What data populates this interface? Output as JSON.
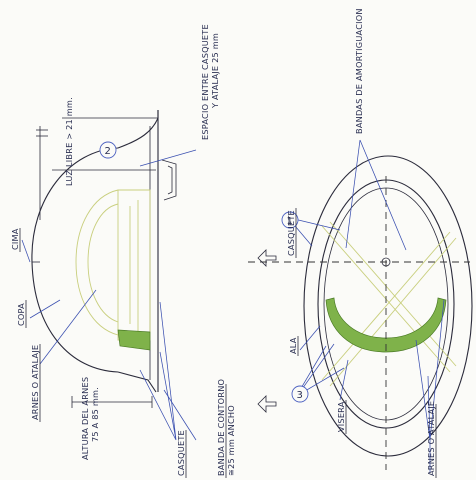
{
  "labels": {
    "cima": "CIMA",
    "copa": "COPA",
    "arnes_left": "ARNES O ATALAJE",
    "altura_line1": "ALTURA DEL ARNES",
    "altura_line2": "75 A 85 mm.",
    "casquete_left": "CASQUETE",
    "banda_line1": "BANDA DE CONTORNO",
    "banda_line2": "≅25 mm ANCHO",
    "luz_libre": "LUZ LIBRE > 21 mm.",
    "espacio_line1": "ESPACIO ENTRE CASQUETE",
    "espacio_line2": "Y ATALAJE 25 mm",
    "casquete_right": "CASQUETE",
    "bandas_amort": "BANDAS DE AMORTIGUACION",
    "ala": "ALA",
    "visera": "VISERA",
    "arnes_right": "ARNES O ATALAJE"
  },
  "callouts": {
    "one": "1",
    "two": "2",
    "three": "3"
  },
  "colors": {
    "ink": "#2b2b3b",
    "leader": "#3a4fb0",
    "harness": "#c9cf7e",
    "band_fill": "#7fb24a"
  }
}
